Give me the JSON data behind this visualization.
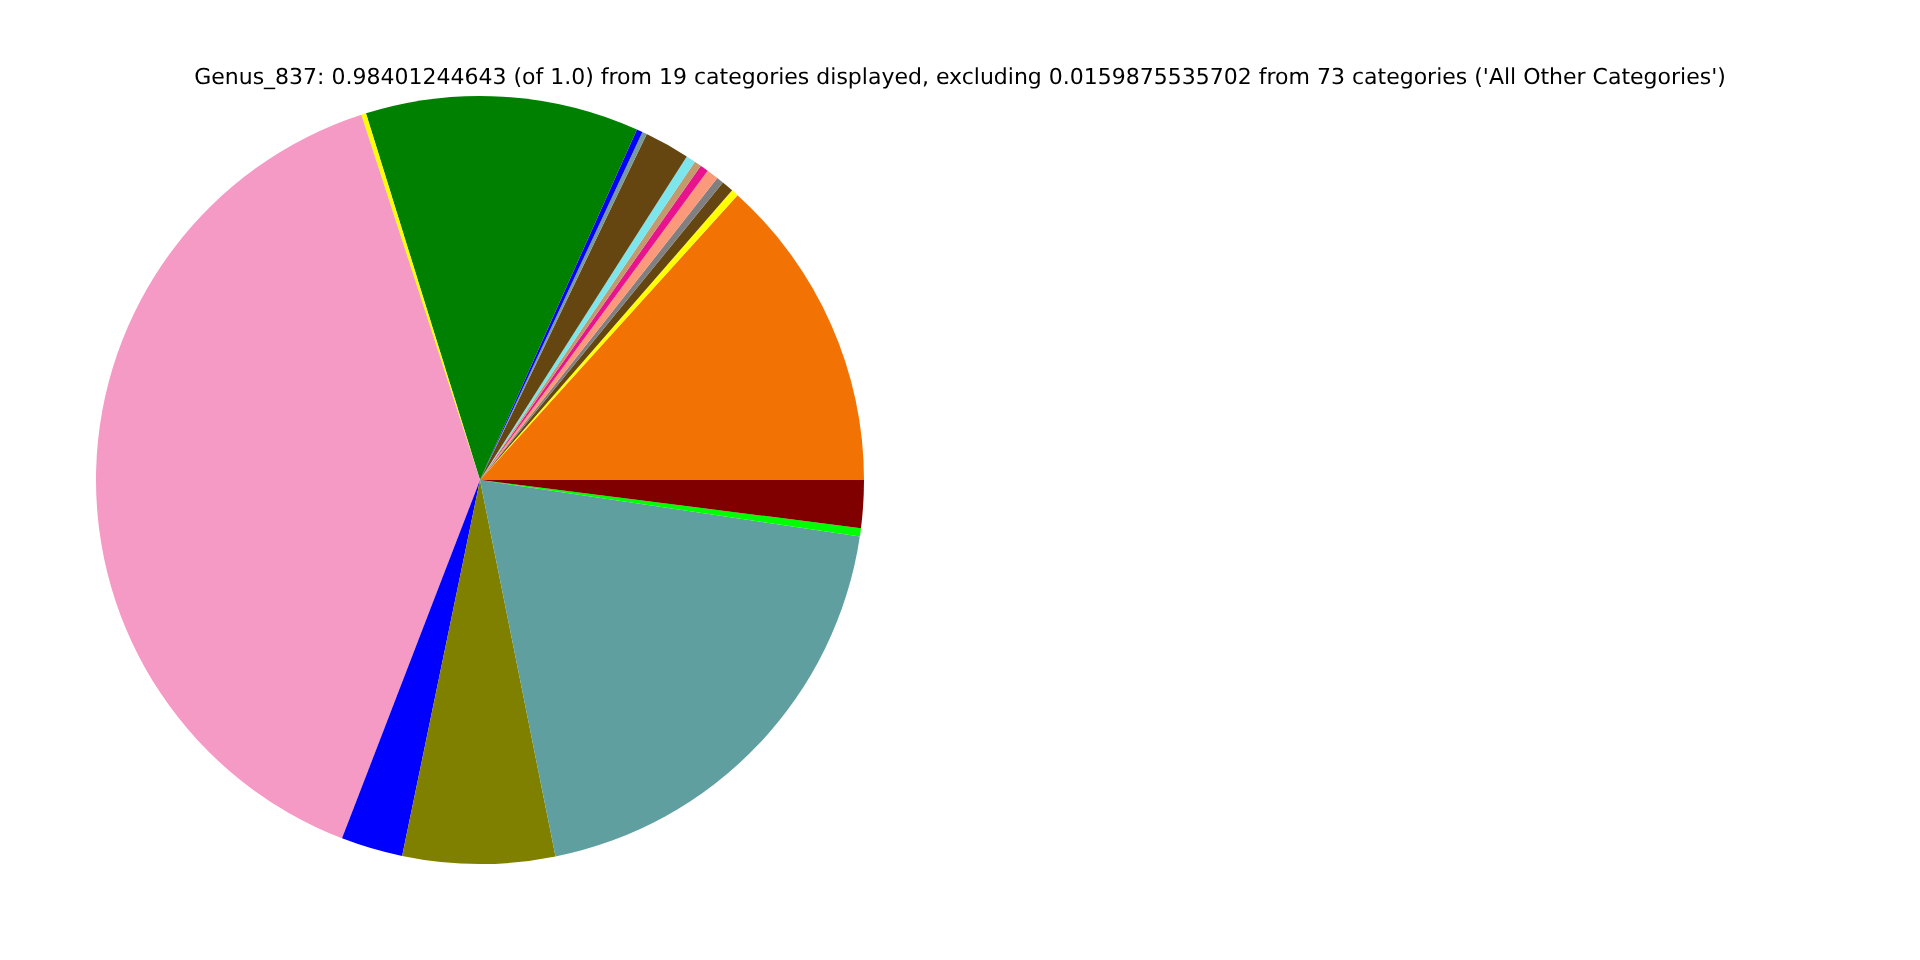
{
  "chart_data": {
    "type": "pie",
    "title": "Genus_837: 0.98401244643 (of 1.0) from 19 categories displayed, excluding 0.0159875535702 from 73 categories ('All Other Categories')",
    "categories": [
      null,
      null,
      null,
      null,
      null,
      null,
      null,
      null,
      null,
      null,
      null,
      null,
      null,
      null,
      null,
      null,
      null,
      null,
      null
    ],
    "values": [
      13.3,
      0.3,
      0.5,
      0.3,
      0.5,
      0.35,
      0.3,
      0.4,
      1.9,
      0.2,
      0.25,
      11.5,
      0.2,
      39.15,
      2.6,
      6.4,
      19.5,
      0.35,
      2.0
    ],
    "colors": [
      "#f27304",
      "#ffff00",
      "#654510",
      "#808080",
      "#fa9a7a",
      "#e8138d",
      "#c49a6c",
      "#7de5ec",
      "#654510",
      "#7a9a9a",
      "#0000ff",
      "#008000",
      "#ffff00",
      "#f49ac4",
      "#0000ff",
      "#808000",
      "#5f9f9f",
      "#00ff00",
      "#800000"
    ]
  }
}
